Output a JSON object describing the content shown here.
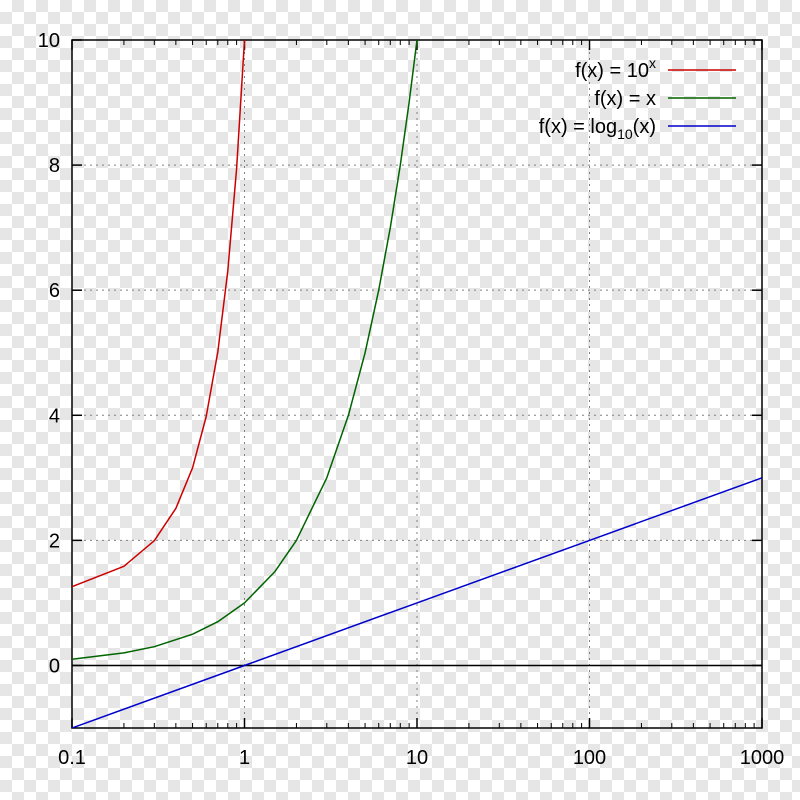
{
  "chart_data": {
    "type": "line",
    "x_scale": "log",
    "xlim": [
      0.1,
      1000
    ],
    "ylim": [
      -1,
      10
    ],
    "x_ticks": [
      0.1,
      1,
      10,
      100,
      1000
    ],
    "x_tick_labels": [
      "0.1",
      "1",
      "10",
      "100",
      "1000"
    ],
    "y_ticks": [
      0,
      2,
      4,
      6,
      8,
      10
    ],
    "y_tick_labels": [
      "0",
      "2",
      "4",
      "6",
      "8",
      "10"
    ],
    "grid": true,
    "zero_line": true,
    "legend_position": "top-right",
    "series": [
      {
        "legend_main": "f(x) = 10",
        "legend_sup": "x",
        "legend_sub": "",
        "legend_tail": "",
        "color": "#cc0000",
        "points": [
          [
            0.1,
            1.259
          ],
          [
            0.2,
            1.585
          ],
          [
            0.3,
            1.995
          ],
          [
            0.4,
            2.512
          ],
          [
            0.5,
            3.162
          ],
          [
            0.6,
            3.981
          ],
          [
            0.7,
            5.012
          ],
          [
            0.8,
            6.31
          ],
          [
            0.9,
            7.943
          ],
          [
            1,
            10
          ]
        ]
      },
      {
        "legend_main": "f(x) = x",
        "legend_sup": "",
        "legend_sub": "",
        "legend_tail": "",
        "color": "#006400",
        "points": [
          [
            0.1,
            0.1
          ],
          [
            0.2,
            0.2
          ],
          [
            0.3,
            0.3
          ],
          [
            0.5,
            0.5
          ],
          [
            0.7,
            0.7
          ],
          [
            1,
            1
          ],
          [
            1.5,
            1.5
          ],
          [
            2,
            2
          ],
          [
            3,
            3
          ],
          [
            4,
            4
          ],
          [
            5,
            5
          ],
          [
            6,
            6
          ],
          [
            7,
            7
          ],
          [
            8,
            8
          ],
          [
            9,
            9
          ],
          [
            10,
            10
          ]
        ]
      },
      {
        "legend_main": "f(x) = log",
        "legend_sup": "",
        "legend_sub": "10",
        "legend_tail": "(x)",
        "color": "#0000cc",
        "points": [
          [
            0.1,
            -1
          ],
          [
            1,
            0
          ],
          [
            10,
            1
          ],
          [
            100,
            2
          ],
          [
            1000,
            3
          ]
        ]
      }
    ]
  }
}
